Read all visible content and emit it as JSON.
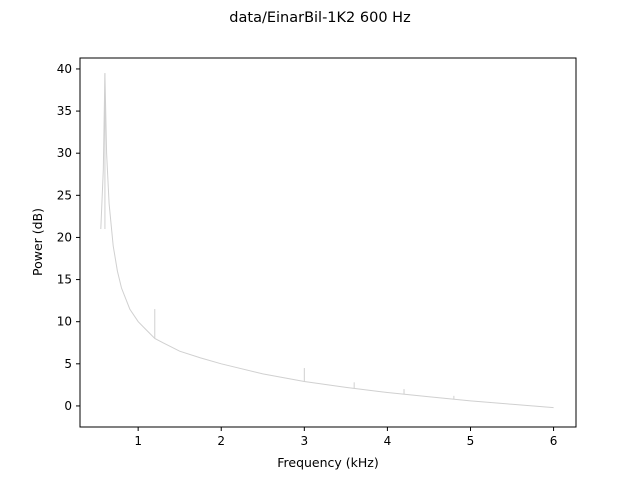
{
  "chart_data": {
    "type": "line",
    "title": "data/EinarBil-1K2   600 Hz",
    "xlabel": "Frequency (kHz)",
    "ylabel": "Power (dB)",
    "xlim": [
      0.3,
      6.27
    ],
    "ylim": [
      -2.5,
      41.3
    ],
    "xticks": [
      1,
      2,
      3,
      4,
      5,
      6
    ],
    "xtick_labels": [
      "1",
      "2",
      "3",
      "4",
      "5",
      "6"
    ],
    "yticks": [
      0,
      5,
      10,
      15,
      20,
      25,
      30,
      35,
      40
    ],
    "ytick_labels": [
      "0",
      "5",
      "10",
      "15",
      "20",
      "25",
      "30",
      "35",
      "40"
    ],
    "grid": false,
    "legend": "none",
    "series": [
      {
        "color": "#d0d0d0",
        "x": [
          0.55,
          0.58,
          0.6,
          0.62,
          0.65,
          0.7,
          0.75,
          0.8,
          0.9,
          1.0,
          1.1,
          1.2,
          1.3,
          1.5,
          1.75,
          2.0,
          2.5,
          3.0,
          3.5,
          4.0,
          4.5,
          5.0,
          5.5,
          6.0
        ],
        "y": [
          21.0,
          28.0,
          39.5,
          30.0,
          24.0,
          19.0,
          16.0,
          14.0,
          11.5,
          10.0,
          9.0,
          8.0,
          7.5,
          6.5,
          5.7,
          5.0,
          3.8,
          2.9,
          2.2,
          1.6,
          1.1,
          0.6,
          0.2,
          -0.2
        ]
      }
    ],
    "spikes": [
      {
        "x": 0.6,
        "y_low": 21.0,
        "y_high": 39.5
      },
      {
        "x": 1.2,
        "y_low": 8.0,
        "y_high": 11.5
      },
      {
        "x": 3.0,
        "y_low": 2.9,
        "y_high": 4.5
      },
      {
        "x": 3.6,
        "y_low": 2.1,
        "y_high": 2.8
      },
      {
        "x": 4.2,
        "y_low": 1.4,
        "y_high": 2.0
      },
      {
        "x": 4.8,
        "y_low": 0.8,
        "y_high": 1.2
      }
    ]
  }
}
